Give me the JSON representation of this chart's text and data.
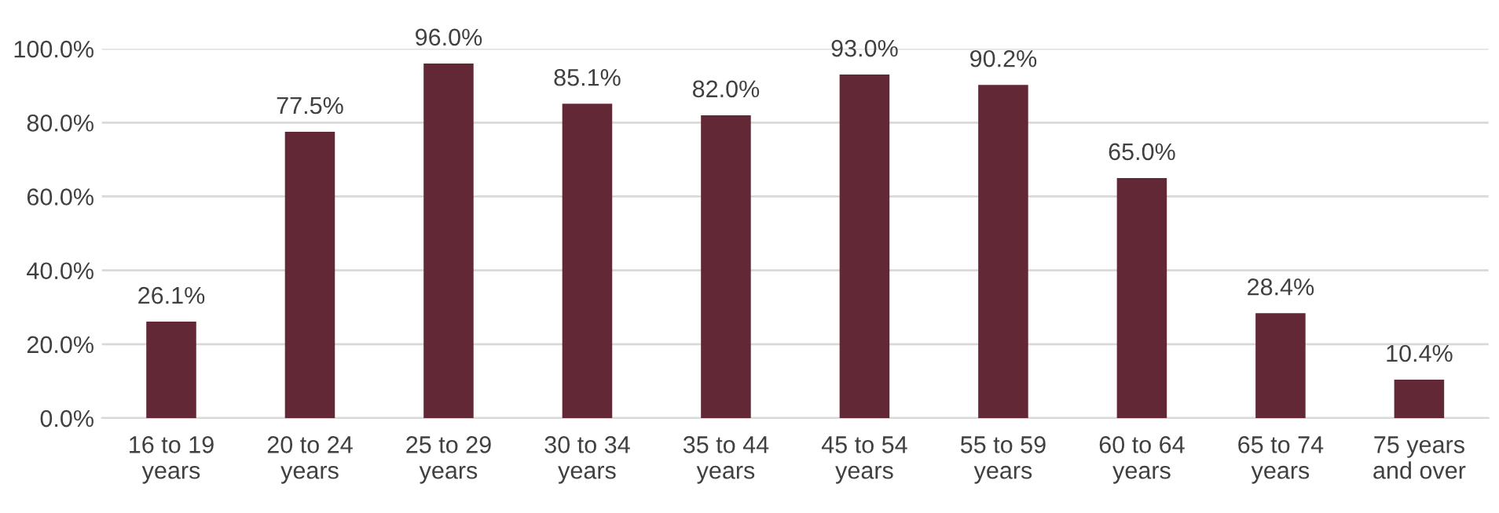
{
  "chart_data": {
    "type": "bar",
    "categories": [
      "16 to 19\nyears",
      "20 to 24\nyears",
      "25 to 29\nyears",
      "30 to 34\nyears",
      "35 to 44\nyears",
      "45 to 54\nyears",
      "55 to 59\nyears",
      "60 to 64\nyears",
      "65 to 74\nyears",
      "75 years\nand over"
    ],
    "values": [
      26.1,
      77.5,
      96.0,
      85.1,
      82.0,
      93.0,
      90.2,
      65.0,
      28.4,
      10.4
    ],
    "value_labels": [
      "26.1%",
      "77.5%",
      "96.0%",
      "85.1%",
      "82.0%",
      "93.0%",
      "90.2%",
      "65.0%",
      "28.4%",
      "10.4%"
    ],
    "color": "#622835",
    "ylim": [
      0,
      100
    ],
    "yticks": [
      {
        "value": 0,
        "label": "0.0%"
      },
      {
        "value": 20,
        "label": "20.0%"
      },
      {
        "value": 40,
        "label": "40.0%"
      },
      {
        "value": 60,
        "label": "60.0%"
      },
      {
        "value": 80,
        "label": "80.0%"
      },
      {
        "value": 100,
        "label": "100.0%"
      }
    ],
    "grid": "y",
    "legend": false
  }
}
